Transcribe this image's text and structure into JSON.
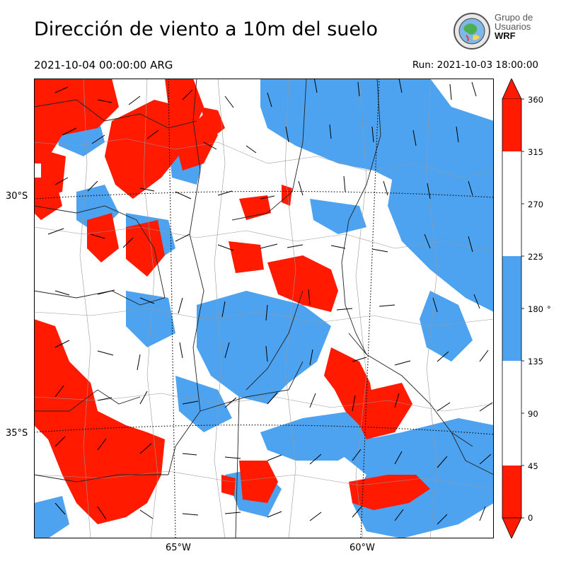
{
  "title": "Dirección de viento a 10m del suelo",
  "valid_time": "2021-10-04 00:00:00 ARG",
  "run_time": "Run: 2021-10-03 18:00:00",
  "logo": {
    "line1": "Grupo de",
    "line2": "Usuarios",
    "line3": "WRF"
  },
  "map": {
    "lat_labels": [
      "30°S",
      "35°S"
    ],
    "lon_labels": [
      "65°W",
      "60°W"
    ]
  },
  "colorbar": {
    "unit": "°",
    "ticks": [
      "360",
      "315",
      "270",
      "225",
      "180",
      "135",
      "90",
      "45",
      "0"
    ],
    "colors": {
      "red": "#ff1a00",
      "white": "#ffffff",
      "blue": "#4da3f0"
    }
  }
}
